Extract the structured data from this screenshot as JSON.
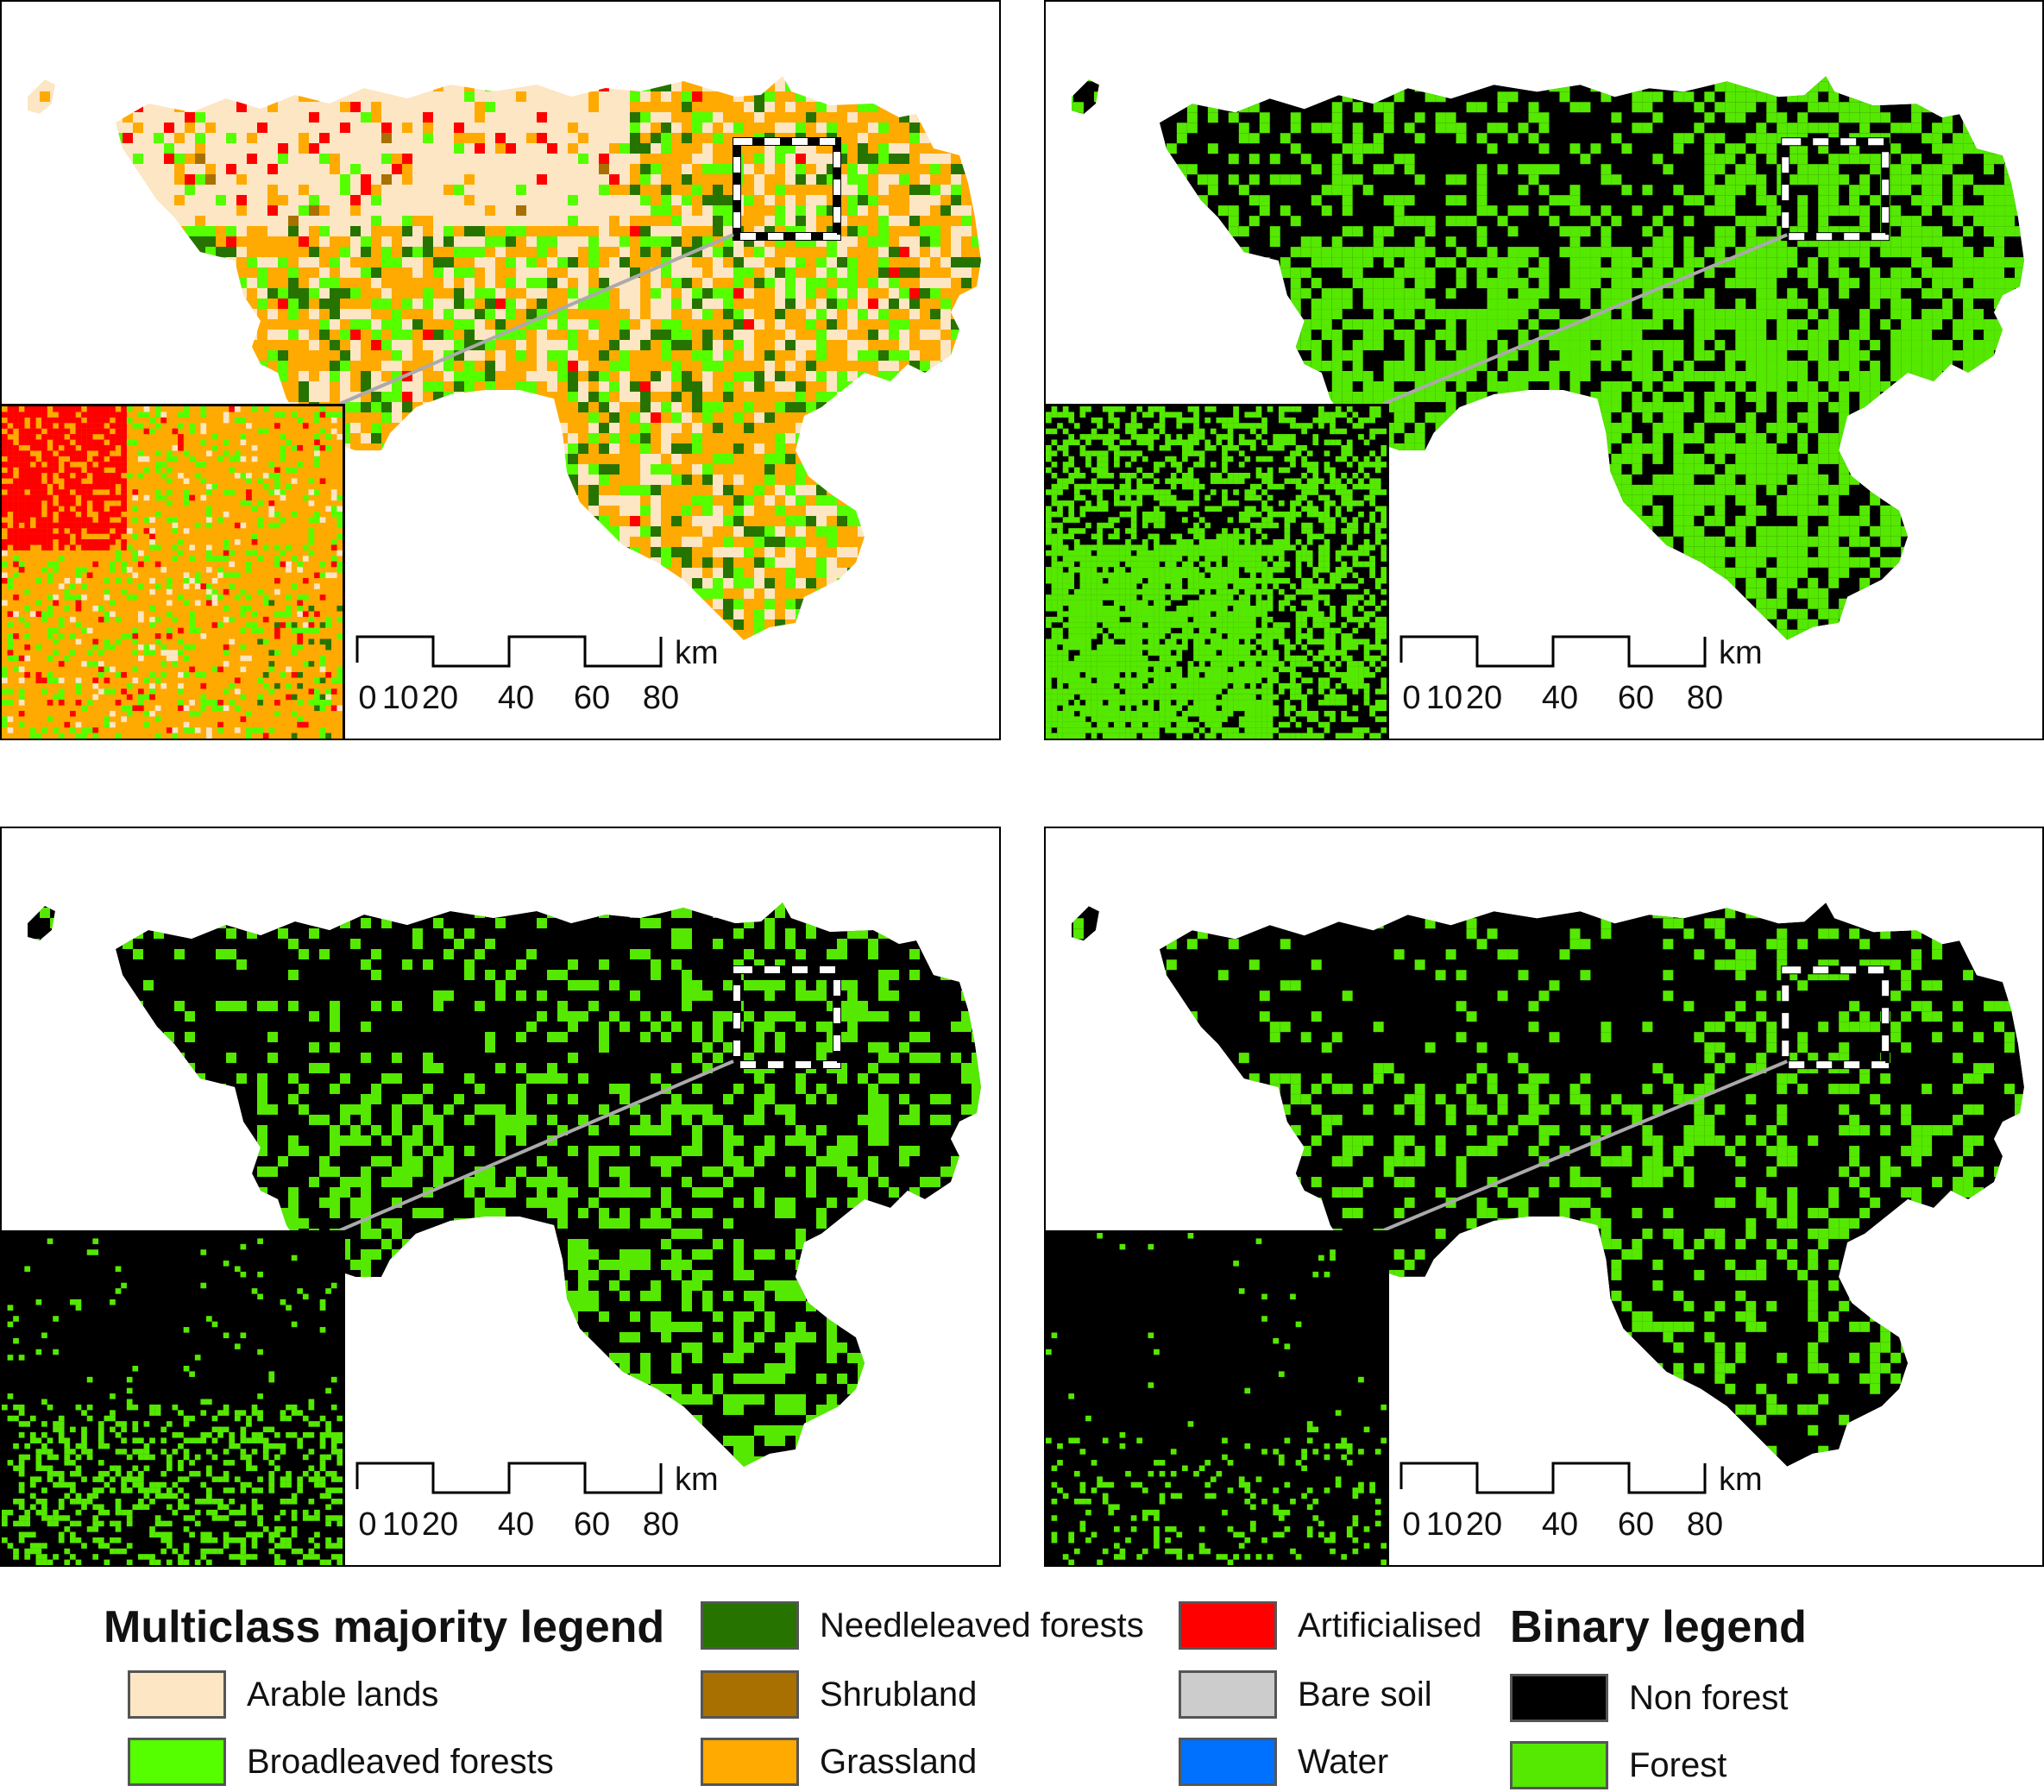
{
  "scale_bar": {
    "ticks": [
      "0",
      "10",
      "20",
      "40",
      "60",
      "80"
    ],
    "unit": "km"
  },
  "panels": [
    {
      "id": "multiclass",
      "style": "multiclass"
    },
    {
      "id": "binary-a",
      "style": "binary",
      "forest_share": 0.55
    },
    {
      "id": "binary-b",
      "style": "binary",
      "forest_share": 0.3
    },
    {
      "id": "binary-c",
      "style": "binary",
      "forest_share": 0.22
    }
  ],
  "legend": {
    "multiclass_title": "Multiclass majority legend",
    "binary_title": "Binary legend",
    "multiclass_items": [
      {
        "label": "Arable lands",
        "color": "#FCE6C3"
      },
      {
        "label": "Broadleaved forests",
        "color": "#55FF00"
      },
      {
        "label": "Needleleaved forests",
        "color": "#267300"
      },
      {
        "label": "Shrubland",
        "color": "#A87000"
      },
      {
        "label": "Grassland",
        "color": "#FFAA00"
      },
      {
        "label": "Artificialised",
        "color": "#FF0000"
      },
      {
        "label": "Bare soil",
        "color": "#CCCCCC"
      },
      {
        "label": "Water",
        "color": "#0070FF"
      }
    ],
    "binary_items": [
      {
        "label": "Non forest",
        "color": "#000000"
      },
      {
        "label": "Forest",
        "color": "#55E800"
      }
    ]
  }
}
